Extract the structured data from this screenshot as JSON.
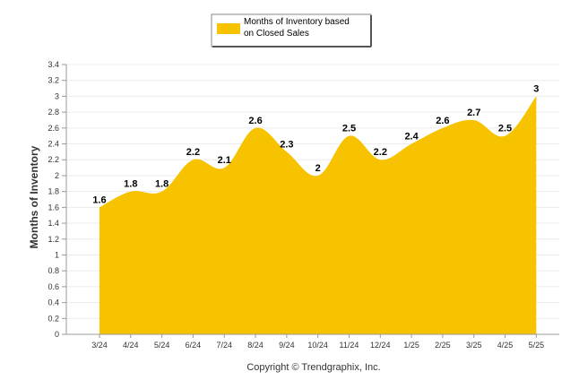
{
  "chart_data": {
    "type": "area",
    "categories": [
      "3/24",
      "4/24",
      "5/24",
      "6/24",
      "7/24",
      "8/24",
      "9/24",
      "10/24",
      "11/24",
      "12/24",
      "1/25",
      "2/25",
      "3/25",
      "4/25",
      "5/25"
    ],
    "series": [
      {
        "name": "Months of Inventory based on Closed Sales",
        "values": [
          1.6,
          1.8,
          1.8,
          2.2,
          2.1,
          2.6,
          2.3,
          2.0,
          2.5,
          2.2,
          2.4,
          2.6,
          2.7,
          2.5,
          3.0
        ],
        "labels": [
          "1.6",
          "1.8",
          "1.8",
          "2.2",
          "2.1",
          "2.6",
          "2.3",
          "2",
          "2.5",
          "2.2",
          "2.4",
          "2.6",
          "2.7",
          "2.5",
          "3"
        ],
        "color": "#F7C300"
      }
    ],
    "ylabel": "Months of Inventory",
    "xlabel": "",
    "ylim": [
      0,
      3.4
    ],
    "yticks": [
      "0",
      "0.2",
      "0.4",
      "0.6",
      "0.8",
      "1",
      "1.2",
      "1.4",
      "1.6",
      "1.8",
      "2",
      "2.2",
      "2.4",
      "2.6",
      "2.8",
      "3",
      "3.2",
      "3.4"
    ],
    "grid": true,
    "legend": {
      "position": "top-center",
      "lines": [
        "Months of Inventory based",
        "on Closed Sales"
      ]
    }
  },
  "footer": "Copyright © Trendgraphix, Inc."
}
